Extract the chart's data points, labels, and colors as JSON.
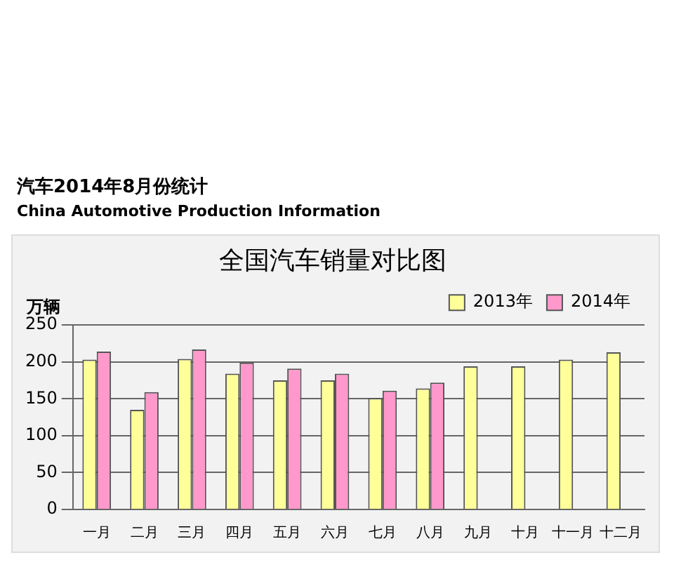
{
  "chart_data": {
    "type": "bar",
    "title": "全国汽车销量对比图",
    "subtitle": "汽车2014年8月份统计 China Automotive Production Information",
    "ylabel": "万辆",
    "categories": [
      "一月",
      "二月",
      "三月",
      "四月",
      "五月",
      "六月",
      "七月",
      "八月",
      "九月",
      "十月",
      "十一月",
      "十二月"
    ],
    "series": [
      {
        "name": "2013年",
        "color": "#ffff99",
        "values": [
          203,
          135,
          204,
          184,
          175,
          175,
          151,
          164,
          194,
          194,
          203,
          213
        ]
      },
      {
        "name": "2014年",
        "color": "#ff99cc",
        "values": [
          214,
          159,
          217,
          199,
          191,
          184,
          161,
          172,
          null,
          null,
          null,
          null
        ]
      }
    ],
    "ylim": [
      0,
      250
    ],
    "yticks": [
      0,
      50,
      100,
      150,
      200,
      250
    ],
    "grid": "y",
    "legend": "top right"
  }
}
